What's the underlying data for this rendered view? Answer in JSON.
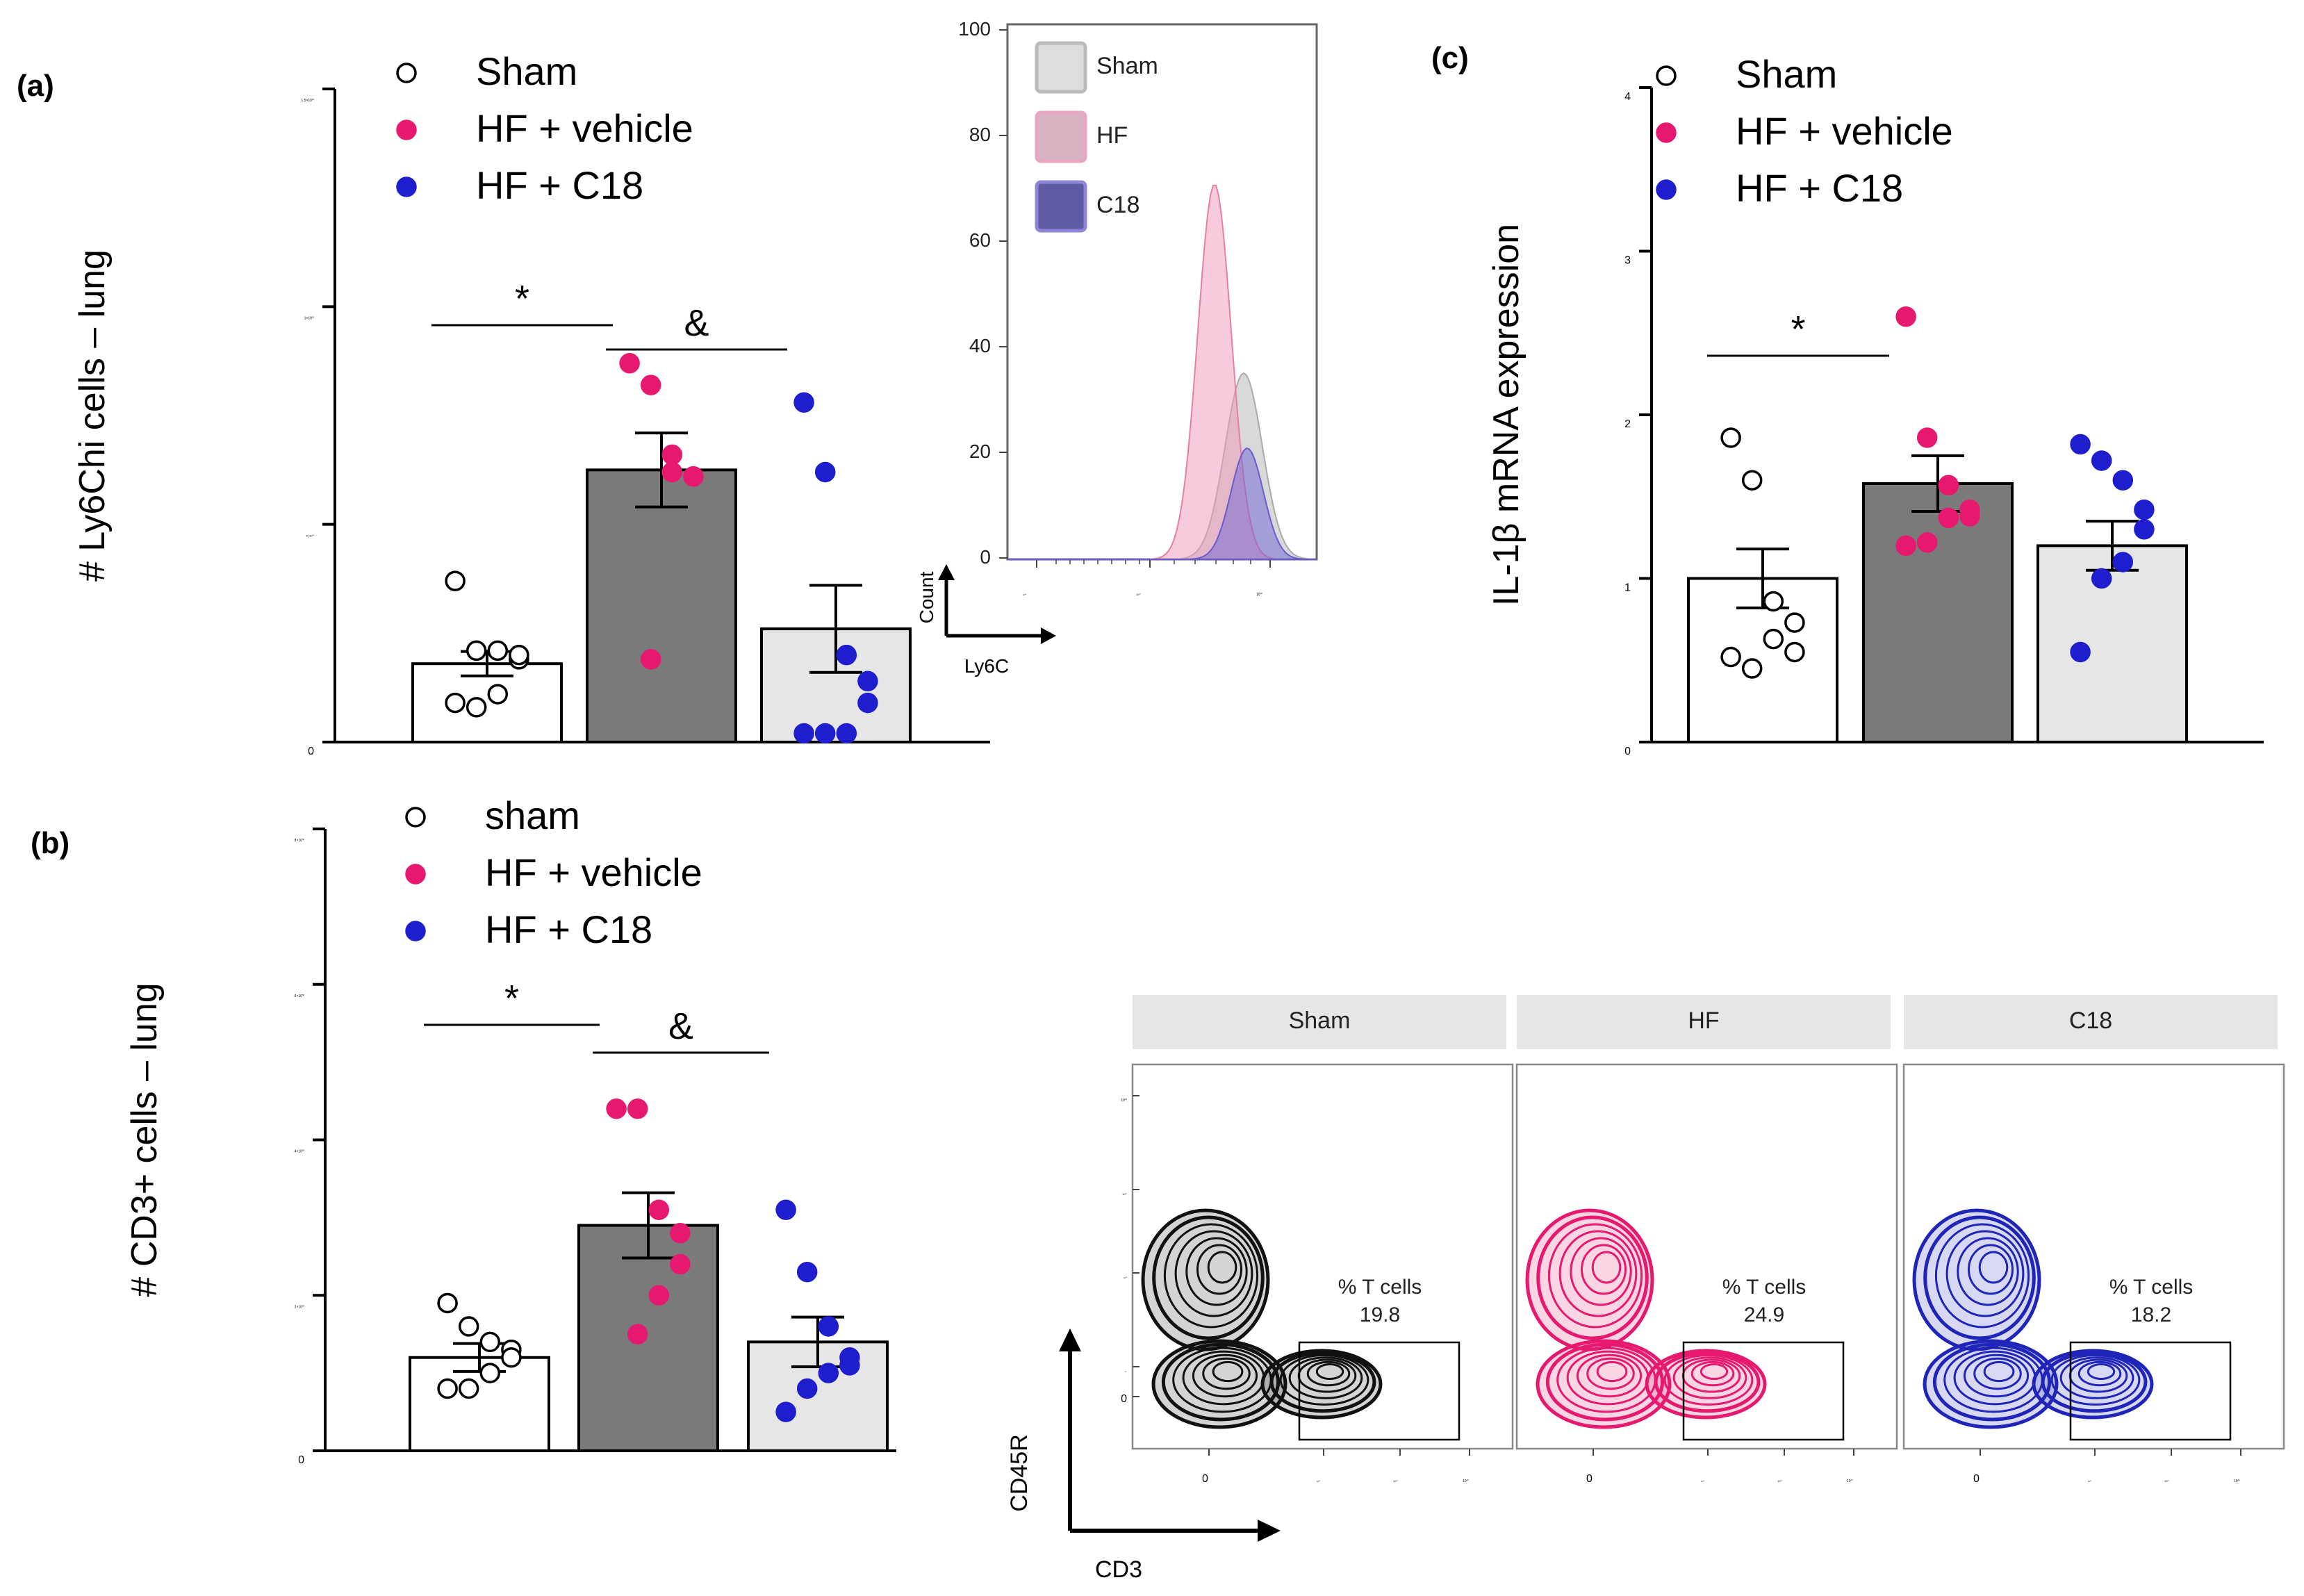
{
  "colors": {
    "sham": "#ffffff",
    "hf": "#e6196e",
    "c18": "#1e1ecf",
    "bar_hf": "#7a7a7a",
    "bar_c18": "#e6e6e6",
    "axis": "#000000"
  },
  "chart_data": [
    {
      "panel": "(a)",
      "type": "bar",
      "ylabel": "# Ly6Chi cells – lung",
      "ylim": [
        0,
        150000
      ],
      "yticks": [
        {
          "v": 0,
          "label": "0",
          "exp": ""
        },
        {
          "v": 50000,
          "label": "5×10",
          "exp": "4"
        },
        {
          "v": 100000,
          "label": "1×10",
          "exp": "5"
        },
        {
          "v": 150000,
          "label": "1.5×10",
          "exp": "5"
        }
      ],
      "legend": [
        "Sham",
        "HF + vehicle",
        "HF + C18"
      ],
      "categories": [
        "Sham",
        "HF + vehicle",
        "HF + C18"
      ],
      "means": [
        18000,
        62500,
        26000
      ],
      "sem": [
        2800,
        8500,
        10000
      ],
      "points": [
        [
          37000,
          21000,
          21000,
          19000,
          20000,
          11000,
          8000,
          9000
        ],
        [
          87000,
          82000,
          66000,
          61000,
          61000,
          62000,
          19000
        ],
        [
          78000,
          62000,
          20000,
          14000,
          9000,
          2000,
          2000,
          2000
        ]
      ],
      "significance": [
        {
          "from": 0,
          "to": 1,
          "label": "*"
        },
        {
          "from": 1,
          "to": 2,
          "label": "&"
        }
      ]
    },
    {
      "panel": "(b)",
      "type": "bar",
      "ylabel": "# CD3+ cells – lung",
      "ylim": [
        0,
        800000
      ],
      "yticks": [
        {
          "v": 0,
          "label": "0",
          "exp": ""
        },
        {
          "v": 200000,
          "label": "2×10",
          "exp": "5"
        },
        {
          "v": 400000,
          "label": "4×10",
          "exp": "5"
        },
        {
          "v": 600000,
          "label": "6×10",
          "exp": "5"
        },
        {
          "v": 800000,
          "label": "8×10",
          "exp": "5"
        }
      ],
      "legend": [
        "sham",
        "HF + vehicle",
        "HF + C18"
      ],
      "categories": [
        "Sham",
        "HF + vehicle",
        "HF + C18"
      ],
      "means": [
        120000,
        290000,
        140000
      ],
      "sem": [
        18000,
        42000,
        32000
      ],
      "points": [
        [
          190000,
          160000,
          140000,
          130000,
          120000,
          100000,
          80000,
          80000
        ],
        [
          440000,
          440000,
          310000,
          280000,
          240000,
          200000,
          150000
        ],
        [
          310000,
          230000,
          160000,
          120000,
          110000,
          100000,
          80000,
          50000
        ]
      ],
      "significance": [
        {
          "from": 0,
          "to": 1,
          "label": "*"
        },
        {
          "from": 1,
          "to": 2,
          "label": "&"
        }
      ]
    },
    {
      "panel": "(c)",
      "type": "bar",
      "ylabel": "IL-1β mRNA expression",
      "ylim": [
        0,
        4
      ],
      "yticks": [
        {
          "v": 0,
          "label": "0",
          "exp": ""
        },
        {
          "v": 1,
          "label": "1",
          "exp": ""
        },
        {
          "v": 2,
          "label": "2",
          "exp": ""
        },
        {
          "v": 3,
          "label": "3",
          "exp": ""
        },
        {
          "v": 4,
          "label": "4",
          "exp": ""
        }
      ],
      "legend": [
        "Sham",
        "HF + vehicle",
        "HF + C18"
      ],
      "categories": [
        "Sham",
        "HF + vehicle",
        "HF + C18"
      ],
      "means": [
        1.0,
        1.58,
        1.2
      ],
      "sem": [
        0.18,
        0.17,
        0.15
      ],
      "points": [
        [
          1.86,
          1.6,
          0.86,
          0.73,
          0.55,
          0.63,
          0.45,
          0.52
        ],
        [
          2.6,
          1.86,
          1.57,
          1.42,
          1.38,
          1.37,
          1.22,
          1.2
        ],
        [
          1.82,
          1.72,
          1.6,
          1.42,
          1.3,
          1.1,
          1.0,
          0.55
        ]
      ],
      "significance": [
        {
          "from": 0,
          "to": 1,
          "label": "*"
        }
      ]
    },
    {
      "panel": "(a) inset",
      "type": "histogram",
      "xlabel": "Ly6C",
      "ylabel": "Count",
      "yticks": [
        "0",
        "20",
        "40",
        "60",
        "80",
        "100"
      ],
      "xticks": [
        {
          "label": "10",
          "exp": "3"
        },
        {
          "label": "10",
          "exp": "4"
        },
        {
          "label": "10",
          "exp": "5"
        }
      ],
      "legend": [
        "Sham",
        "HF",
        "C18"
      ],
      "peaks": [
        {
          "name": "Sham",
          "peak": 35
        },
        {
          "name": "HF",
          "peak": 70
        },
        {
          "name": "C18",
          "peak": 20
        }
      ]
    },
    {
      "panel": "(b) flow",
      "type": "contour",
      "xlabel": "CD3",
      "ylabel": "CD45R",
      "yticks": [
        {
          "label": "10",
          "exp": "5"
        },
        {
          "label": "10",
          "exp": "4"
        },
        {
          "label": "10",
          "exp": "3"
        },
        {
          "label": "10",
          "exp": "2"
        },
        {
          "label": "0",
          "exp": ""
        }
      ],
      "xticks": [
        {
          "label": "0",
          "exp": ""
        },
        {
          "label": "10",
          "exp": "3"
        },
        {
          "label": "10",
          "exp": "4"
        },
        {
          "label": "10",
          "exp": "5"
        }
      ],
      "gate_label": "% T cells",
      "panels": [
        {
          "name": "Sham",
          "pct": "19.8"
        },
        {
          "name": "HF",
          "pct": "24.9"
        },
        {
          "name": "C18",
          "pct": "18.2"
        }
      ]
    }
  ]
}
